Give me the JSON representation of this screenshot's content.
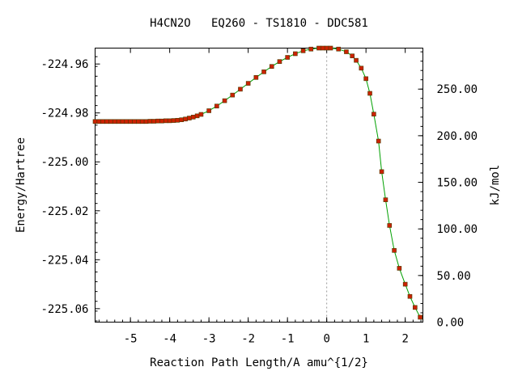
{
  "chart_data": {
    "type": "line",
    "title": "H4CN2O   EQ260 - TS1810 - DDC581",
    "xlabel": "Reaction Path Length/A amu^{1/2}",
    "ylabel": "Energy/Hartree",
    "y2label": "kJ/mol",
    "xlim": [
      -5.9,
      2.45
    ],
    "ylim": [
      -225.0655,
      -224.9535
    ],
    "y2lim": [
      0.0,
      294.0
    ],
    "x_ticks": [
      "-5",
      "-4",
      "-3",
      "-2",
      "-1",
      "0",
      "1",
      "2"
    ],
    "x_tick_values": [
      -5,
      -4,
      -3,
      -2,
      -1,
      0,
      1,
      2
    ],
    "y_ticks": [
      "-224.96",
      "-224.98",
      "-225.00",
      "-225.02",
      "-225.04",
      "-225.06"
    ],
    "y_tick_values": [
      -224.96,
      -224.98,
      -225.0,
      -225.02,
      -225.04,
      -225.06
    ],
    "y2_ticks": [
      "250.00",
      "200.00",
      "150.00",
      "100.00",
      "50.00",
      "0.00"
    ],
    "y2_tick_values": [
      250,
      200,
      150,
      100,
      50,
      0
    ],
    "ts_marker_x": 0,
    "line_color": "#00a000",
    "marker_color": "#cc2200",
    "series": [
      {
        "x": [
          -5.9,
          -5.8,
          -5.7,
          -5.6,
          -5.5,
          -5.4,
          -5.3,
          -5.2,
          -5.1,
          -5.0,
          -4.9,
          -4.8,
          -4.7,
          -4.6,
          -4.5,
          -4.4,
          -4.3,
          -4.2,
          -4.1,
          -4.0,
          -3.9,
          -3.8,
          -3.7,
          -3.6,
          -3.5,
          -3.4,
          -3.3,
          -3.2,
          -3.0,
          -2.8,
          -2.6,
          -2.4,
          -2.2,
          -2.0,
          -1.8,
          -1.6,
          -1.4,
          -1.2,
          -1.0,
          -0.8,
          -0.6,
          -0.4,
          -0.2,
          -0.1,
          0.0,
          0.1,
          0.3,
          0.5,
          0.65,
          0.75,
          0.88,
          1.0,
          1.1,
          1.2,
          1.32,
          1.4,
          1.5,
          1.6,
          1.72,
          1.85,
          2.0,
          2.12,
          2.25,
          2.38
        ],
        "y": [
          -224.9835,
          -224.9835,
          -224.9835,
          -224.9835,
          -224.9835,
          -224.9835,
          -224.9835,
          -224.9835,
          -224.9835,
          -224.9835,
          -224.9835,
          -224.9835,
          -224.9835,
          -224.9835,
          -224.9834,
          -224.9834,
          -224.9833,
          -224.9833,
          -224.9832,
          -224.9832,
          -224.9831,
          -224.983,
          -224.9828,
          -224.9825,
          -224.9821,
          -224.9817,
          -224.9812,
          -224.9806,
          -224.9791,
          -224.9772,
          -224.975,
          -224.9727,
          -224.9703,
          -224.9679,
          -224.9655,
          -224.9632,
          -224.961,
          -224.959,
          -224.9573,
          -224.9558,
          -224.9546,
          -224.9539,
          -224.9535,
          -224.9535,
          -224.9535,
          -224.9535,
          -224.9539,
          -224.955,
          -224.9567,
          -224.9585,
          -224.9617,
          -224.966,
          -224.972,
          -224.9805,
          -224.9915,
          -225.004,
          -225.0155,
          -225.026,
          -225.0362,
          -225.0435,
          -225.05,
          -225.055,
          -225.0595,
          -225.0635
        ]
      }
    ]
  }
}
